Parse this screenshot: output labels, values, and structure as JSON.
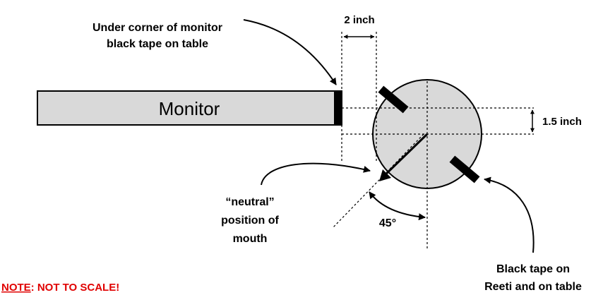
{
  "labels": {
    "under_corner_line1": "Under corner of monitor",
    "under_corner_line2": "black tape on table",
    "two_inch": "2 inch",
    "monitor": "Monitor",
    "one_point_five_inch": "1.5 inch",
    "neutral_line1": "“neutral”",
    "neutral_line2": "position of",
    "neutral_line3": "mouth",
    "angle": "45°",
    "tape_line1": "Black tape on",
    "tape_line2": "Reeti and on table",
    "note_prefix": "NOTE",
    "note_suffix": ": NOT TO SCALE!"
  },
  "colors": {
    "monitor_fill": "#d9d9d9",
    "circle_fill": "#d9d9d9",
    "stroke": "#000000",
    "note": "#e00000"
  }
}
